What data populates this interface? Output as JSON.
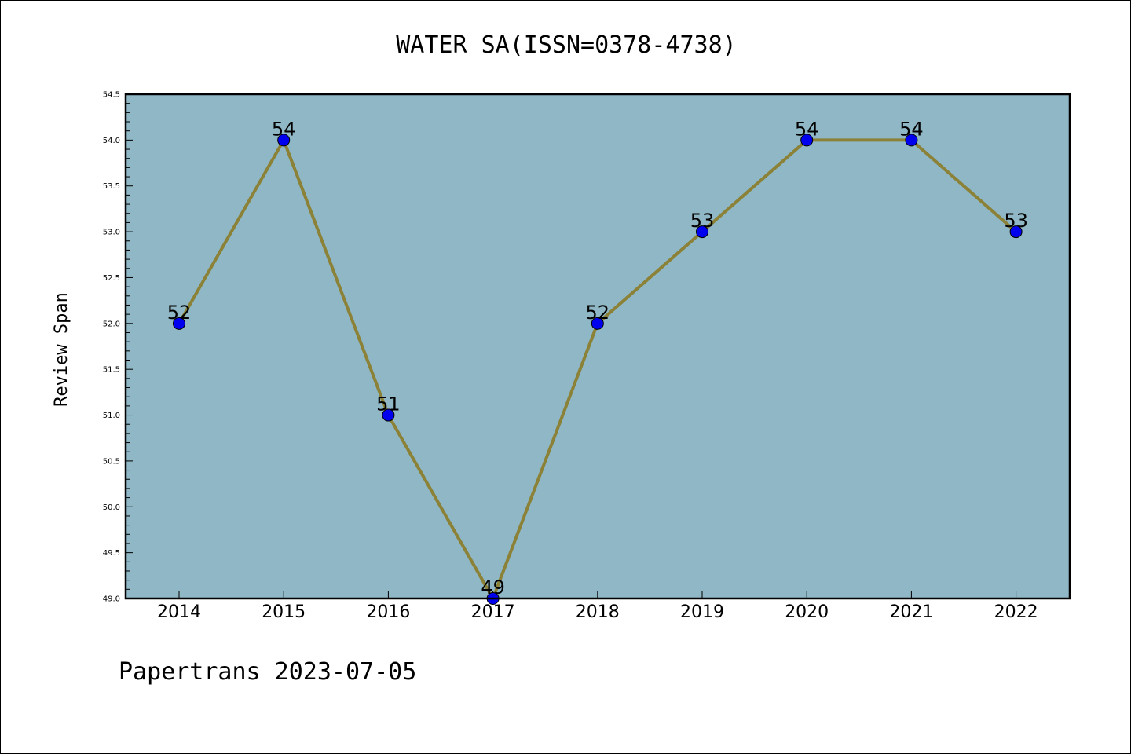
{
  "chart_data": {
    "type": "line",
    "title": "WATER SA(ISSN=0378-4738)",
    "ylabel": "Review Span",
    "xlabel": "",
    "categories": [
      "2014",
      "2015",
      "2016",
      "2017",
      "2018",
      "2019",
      "2020",
      "2021",
      "2022"
    ],
    "values": [
      52,
      54,
      51,
      49,
      52,
      53,
      54,
      54,
      53
    ],
    "data_labels": [
      "52",
      "54",
      "51",
      "49",
      "52",
      "53",
      "54",
      "54",
      "53"
    ],
    "ylim": [
      49.0,
      54.5
    ],
    "yticks": [
      49.0,
      49.5,
      50.0,
      50.5,
      51.0,
      51.5,
      52.0,
      52.5,
      53.0,
      53.5,
      54.0,
      54.5
    ],
    "ytick_labels": [
      "49.0",
      "49.5",
      "50.0",
      "50.5",
      "51.0",
      "51.5",
      "52.0",
      "52.5",
      "53.0",
      "53.5",
      "54.0",
      "54.5"
    ],
    "grid": false,
    "colors": {
      "plot_background": "#8fb7c5",
      "line": "#8b8137",
      "marker": "#0000ee"
    }
  },
  "footer": {
    "text": "Papertrans 2023-07-05"
  }
}
